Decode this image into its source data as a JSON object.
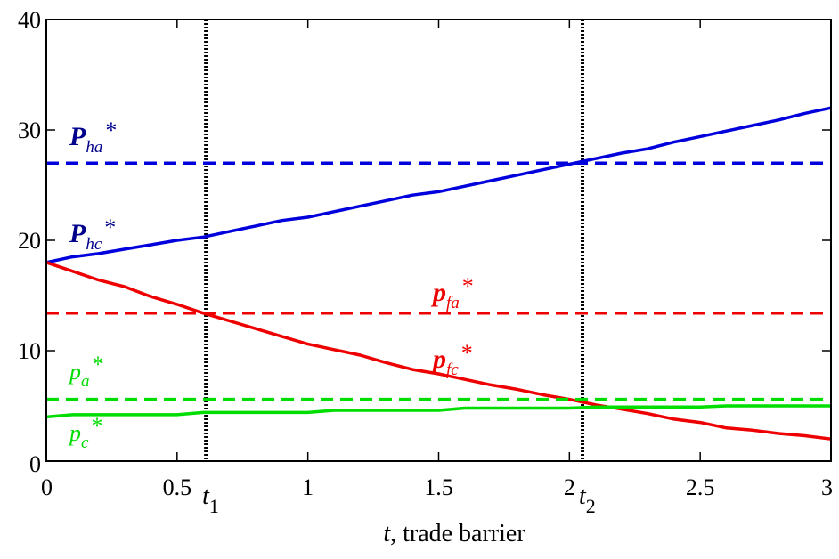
{
  "chart_data": {
    "type": "line",
    "title": "",
    "xlabel": {
      "var": "t",
      "rest": ", trade barrier"
    },
    "ylabel": "",
    "xlim": [
      0,
      3
    ],
    "ylim": [
      0,
      40
    ],
    "xticks": [
      "0",
      "0.5",
      "1",
      "1.5",
      "2",
      "2.5",
      "3"
    ],
    "xtick_values": [
      0,
      0.5,
      1,
      1.5,
      2,
      2.5,
      3
    ],
    "yticks": [
      "0",
      "10",
      "20",
      "30",
      "40"
    ],
    "ytick_values": [
      0,
      10,
      20,
      30,
      40
    ],
    "grid": false,
    "colors": {
      "blue": "#0000dd",
      "darkblue": "#00008b",
      "red": "#ee0000",
      "green": "#00dd00",
      "black": "#000000"
    },
    "vlines": [
      {
        "x": 0.61,
        "label_main": "t",
        "label_sub": "1"
      },
      {
        "x": 2.05,
        "label_main": "t",
        "label_sub": "2"
      }
    ],
    "series": [
      {
        "style": "dashed",
        "color": "#0000dd",
        "label_main": "P",
        "label_sub": "ha",
        "label_sup": "*",
        "label_color": "#00008b",
        "x": [
          0,
          3
        ],
        "y": [
          27,
          27
        ]
      },
      {
        "style": "solid",
        "color": "#0000dd",
        "label_main": "P",
        "label_sub": "hc",
        "label_sup": "*",
        "label_color": "#00008b",
        "x": [
          0,
          0.1,
          0.2,
          0.3,
          0.4,
          0.5,
          0.6,
          0.7,
          0.8,
          0.9,
          1.0,
          1.1,
          1.2,
          1.3,
          1.4,
          1.5,
          1.6,
          1.7,
          1.8,
          1.9,
          2.0,
          2.1,
          2.2,
          2.3,
          2.4,
          2.5,
          2.6,
          2.7,
          2.8,
          2.9,
          3.0
        ],
        "y": [
          18,
          18.5,
          18.8,
          19.2,
          19.6,
          20.0,
          20.3,
          20.8,
          21.3,
          21.8,
          22.1,
          22.6,
          23.1,
          23.6,
          24.1,
          24.4,
          24.9,
          25.4,
          25.9,
          26.4,
          26.9,
          27.4,
          27.9,
          28.3,
          28.9,
          29.4,
          29.9,
          30.4,
          30.9,
          31.5,
          32.0
        ]
      },
      {
        "style": "dashed",
        "color": "#ee0000",
        "label_main": "p",
        "label_sub": "fa",
        "label_sup": "*",
        "label_color": "#ee0000",
        "x": [
          0,
          3
        ],
        "y": [
          13.4,
          13.4
        ]
      },
      {
        "style": "solid",
        "color": "#ee0000",
        "label_main": "p",
        "label_sub": "fc",
        "label_sup": "*",
        "label_color": "#ee0000",
        "x": [
          0,
          0.1,
          0.2,
          0.3,
          0.4,
          0.5,
          0.6,
          0.7,
          0.8,
          0.9,
          1.0,
          1.1,
          1.2,
          1.3,
          1.4,
          1.5,
          1.6,
          1.7,
          1.8,
          1.9,
          2.0,
          2.1,
          2.2,
          2.3,
          2.4,
          2.5,
          2.6,
          2.7,
          2.8,
          2.9,
          3.0
        ],
        "y": [
          18,
          17.2,
          16.4,
          15.8,
          14.9,
          14.2,
          13.4,
          12.7,
          12.0,
          11.3,
          10.6,
          10.1,
          9.6,
          8.9,
          8.3,
          7.9,
          7.4,
          6.9,
          6.5,
          6.0,
          5.6,
          5.1,
          4.7,
          4.3,
          3.8,
          3.5,
          3.0,
          2.8,
          2.5,
          2.3,
          2.0
        ]
      },
      {
        "style": "dashed",
        "color": "#00dd00",
        "label_main": "p",
        "label_sub": "a",
        "label_sup": "*",
        "label_color": "#00dd00",
        "x": [
          0,
          3
        ],
        "y": [
          5.6,
          5.6
        ]
      },
      {
        "style": "solid",
        "color": "#00dd00",
        "label_main": "p",
        "label_sub": "c",
        "label_sup": "*",
        "label_color": "#00dd00",
        "x": [
          0,
          0.1,
          0.5,
          0.6,
          1.0,
          1.1,
          1.5,
          1.6,
          2.0,
          2.1,
          2.5,
          2.6,
          3.0
        ],
        "y": [
          4.0,
          4.2,
          4.2,
          4.4,
          4.4,
          4.6,
          4.6,
          4.8,
          4.8,
          4.9,
          4.9,
          5.0,
          5.0
        ]
      }
    ]
  }
}
